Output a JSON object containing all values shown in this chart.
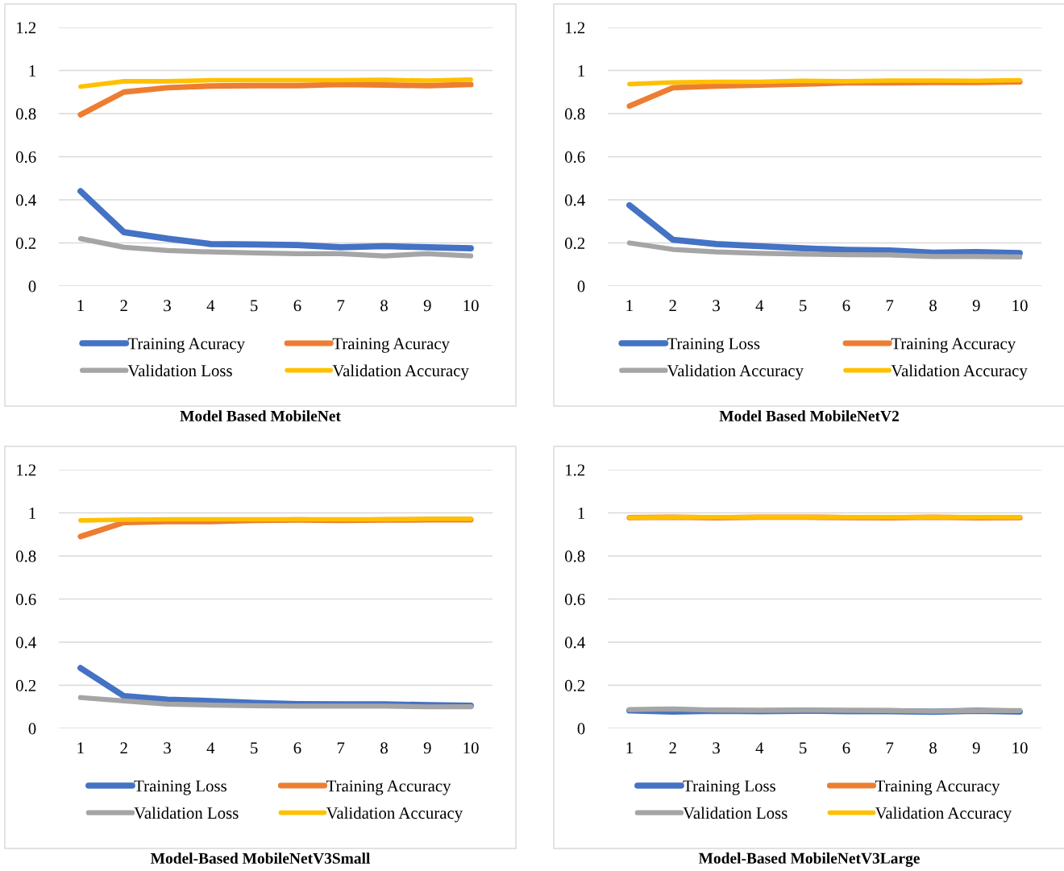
{
  "chart_data": [
    {
      "type": "line",
      "title": "Model Based MobileNet",
      "categories": [
        "1",
        "2",
        "3",
        "4",
        "5",
        "6",
        "7",
        "8",
        "9",
        "10"
      ],
      "ylim": [
        0,
        1.2
      ],
      "yticks": [
        0,
        0.2,
        0.4,
        0.6,
        0.8,
        1,
        1.2
      ],
      "grid": "y",
      "legend": "bottom",
      "marker": "none",
      "line_style": "solid",
      "series": [
        {
          "name": "Training Acuracy",
          "color": "#4472c4",
          "values": [
            0.44,
            0.25,
            0.22,
            0.195,
            0.193,
            0.19,
            0.18,
            0.185,
            0.18,
            0.175
          ]
        },
        {
          "name": "Training Acuracy",
          "color": "#ed7d31",
          "values": [
            0.795,
            0.9,
            0.92,
            0.928,
            0.93,
            0.93,
            0.935,
            0.933,
            0.93,
            0.935
          ]
        },
        {
          "name": "Validation Loss",
          "color": "#a5a5a5",
          "values": [
            0.22,
            0.18,
            0.165,
            0.158,
            0.154,
            0.15,
            0.15,
            0.14,
            0.15,
            0.14
          ]
        },
        {
          "name": "Validation Accuracy",
          "color": "#ffc000",
          "values": [
            0.925,
            0.95,
            0.95,
            0.955,
            0.955,
            0.955,
            0.955,
            0.957,
            0.953,
            0.958
          ]
        }
      ]
    },
    {
      "type": "line",
      "title": "Model Based MobileNetV2",
      "categories": [
        "1",
        "2",
        "3",
        "4",
        "5",
        "6",
        "7",
        "8",
        "9",
        "10"
      ],
      "ylim": [
        0,
        1.2
      ],
      "yticks": [
        0,
        0.2,
        0.4,
        0.6,
        0.8,
        1,
        1.2
      ],
      "grid": "y",
      "legend": "bottom",
      "marker": "none",
      "line_style": "solid",
      "series": [
        {
          "name": "Training Loss",
          "color": "#4472c4",
          "values": [
            0.375,
            0.215,
            0.195,
            0.185,
            0.175,
            0.168,
            0.165,
            0.155,
            0.158,
            0.153
          ]
        },
        {
          "name": "Training Accuracy",
          "color": "#ed7d31",
          "values": [
            0.835,
            0.92,
            0.928,
            0.933,
            0.937,
            0.943,
            0.943,
            0.945,
            0.945,
            0.948
          ]
        },
        {
          "name": "Validation Accuracy",
          "color": "#a5a5a5",
          "values": [
            0.2,
            0.17,
            0.158,
            0.152,
            0.148,
            0.145,
            0.144,
            0.137,
            0.137,
            0.135
          ]
        },
        {
          "name": "Validation Accuracy",
          "color": "#ffc000",
          "values": [
            0.937,
            0.945,
            0.948,
            0.948,
            0.952,
            0.95,
            0.953,
            0.953,
            0.952,
            0.955
          ]
        }
      ]
    },
    {
      "type": "line",
      "title": "Model-Based MobileNetV3Small",
      "categories": [
        "1",
        "2",
        "3",
        "4",
        "5",
        "6",
        "7",
        "8",
        "9",
        "10"
      ],
      "ylim": [
        0,
        1.2
      ],
      "yticks": [
        0,
        0.2,
        0.4,
        0.6,
        0.8,
        1,
        1.2
      ],
      "grid": "y",
      "legend": "bottom",
      "marker": "none",
      "line_style": "solid",
      "series": [
        {
          "name": "Training Loss",
          "color": "#4472c4",
          "values": [
            0.28,
            0.15,
            0.133,
            0.127,
            0.118,
            0.113,
            0.112,
            0.112,
            0.108,
            0.105
          ]
        },
        {
          "name": "Training Accuracy",
          "color": "#ed7d31",
          "values": [
            0.89,
            0.955,
            0.96,
            0.96,
            0.965,
            0.967,
            0.965,
            0.967,
            0.968,
            0.968
          ]
        },
        {
          "name": "Validation Loss",
          "color": "#a5a5a5",
          "values": [
            0.143,
            0.128,
            0.113,
            0.108,
            0.105,
            0.103,
            0.103,
            0.103,
            0.1,
            0.1
          ]
        },
        {
          "name": "Validation Accuracy",
          "color": "#ffc000",
          "values": [
            0.965,
            0.968,
            0.97,
            0.97,
            0.97,
            0.97,
            0.97,
            0.97,
            0.972,
            0.972
          ]
        }
      ]
    },
    {
      "type": "line",
      "title": "Model-Based MobileNetV3Large",
      "categories": [
        "1",
        "2",
        "3",
        "4",
        "5",
        "6",
        "7",
        "8",
        "9",
        "10"
      ],
      "ylim": [
        0,
        1.2
      ],
      "yticks": [
        0,
        0.2,
        0.4,
        0.6,
        0.8,
        1,
        1.2
      ],
      "grid": "y",
      "legend": "bottom",
      "marker": "none",
      "line_style": "solid",
      "series": [
        {
          "name": "Training Loss",
          "color": "#4472c4",
          "values": [
            0.083,
            0.078,
            0.082,
            0.08,
            0.082,
            0.08,
            0.08,
            0.077,
            0.082,
            0.078
          ]
        },
        {
          "name": "Training Accuracy",
          "color": "#ed7d31",
          "values": [
            0.978,
            0.98,
            0.977,
            0.98,
            0.98,
            0.978,
            0.977,
            0.98,
            0.977,
            0.978
          ]
        },
        {
          "name": "Validation Loss",
          "color": "#a5a5a5",
          "values": [
            0.087,
            0.09,
            0.085,
            0.084,
            0.085,
            0.084,
            0.083,
            0.08,
            0.083,
            0.083
          ]
        },
        {
          "name": "Validation Accuracy",
          "color": "#ffc000",
          "values": [
            0.978,
            0.98,
            0.98,
            0.98,
            0.98,
            0.98,
            0.98,
            0.98,
            0.98,
            0.98
          ]
        }
      ]
    }
  ]
}
